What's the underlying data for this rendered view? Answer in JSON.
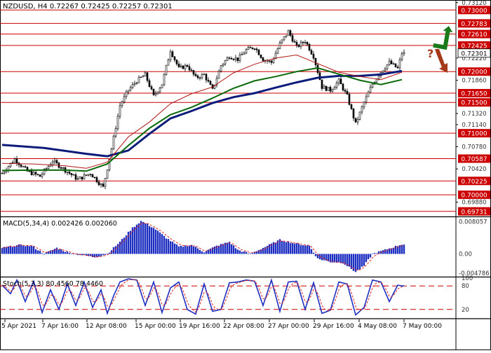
{
  "colors": {
    "background": "#ffffff",
    "level_line": "#cc0000",
    "level_label_bg": "#cc0000",
    "price_label_bg": "#ffffff",
    "candle": "#000000",
    "ma_blue": "#0c1c7a",
    "ma_green": "#0a6a0a",
    "ma_red": "#b01515",
    "macd_bar": "#1d2fc0",
    "signal_line": "#dd2222",
    "stoch_main": "#1d2fc0",
    "stoch_signal": "#dd2222",
    "up_arrow": "#1a7a1a",
    "down_arrow": "#a53a1a",
    "text": "#000000"
  },
  "chart_data": [
    {
      "type": "candlestick",
      "title": "NZDUSD, H4  0.72267  0.72425  0.72257  0.72301",
      "ylim": [
        0.6966,
        0.7314
      ],
      "price_ticks": [
        "0.73120",
        "0.72940",
        "0.72760",
        "0.72580",
        "0.72400",
        "0.72220",
        "0.72040",
        "0.71860",
        "0.71680",
        "0.71500",
        "0.71320",
        "0.71140",
        "0.70960",
        "0.70780",
        "0.70600",
        "0.70420",
        "0.70240",
        "0.70060",
        "0.69880"
      ],
      "current_price": "0.72301",
      "levels": [
        "0.73000",
        "0.72783",
        "0.72610",
        "0.72425",
        "0.72000",
        "0.71650",
        "0.71500",
        "0.71000",
        "0.70587",
        "0.70225",
        "0.70000",
        "0.69731"
      ],
      "time_labels": [
        "5 Apr 2021",
        "7 Apr 16:00",
        "12 Apr 08:00",
        "15 Apr 00:00",
        "19 Apr 16:00",
        "22 Apr 08:00",
        "27 Apr 00:00",
        "29 Apr 16:00",
        "4 May 08:00",
        "7 May 00:00"
      ],
      "close_anchors": [
        [
          0,
          0.7035
        ],
        [
          6,
          0.7058
        ],
        [
          12,
          0.7038
        ],
        [
          18,
          0.703
        ],
        [
          24,
          0.7055
        ],
        [
          30,
          0.704
        ],
        [
          36,
          0.7025
        ],
        [
          42,
          0.7035
        ],
        [
          48,
          0.7012
        ],
        [
          52,
          0.7075
        ],
        [
          56,
          0.7145
        ],
        [
          60,
          0.717
        ],
        [
          64,
          0.7185
        ],
        [
          68,
          0.7195
        ],
        [
          72,
          0.716
        ],
        [
          76,
          0.718
        ],
        [
          80,
          0.7235
        ],
        [
          84,
          0.7205
        ],
        [
          88,
          0.721
        ],
        [
          92,
          0.719
        ],
        [
          96,
          0.7195
        ],
        [
          100,
          0.717
        ],
        [
          104,
          0.721
        ],
        [
          108,
          0.7225
        ],
        [
          112,
          0.722
        ],
        [
          116,
          0.7235
        ],
        [
          120,
          0.724
        ],
        [
          124,
          0.722
        ],
        [
          128,
          0.7215
        ],
        [
          132,
          0.7245
        ],
        [
          136,
          0.7265
        ],
        [
          140,
          0.724
        ],
        [
          144,
          0.725
        ],
        [
          148,
          0.7225
        ],
        [
          152,
          0.7175
        ],
        [
          156,
          0.717
        ],
        [
          160,
          0.7185
        ],
        [
          164,
          0.716
        ],
        [
          168,
          0.7115
        ],
        [
          172,
          0.715
        ],
        [
          176,
          0.718
        ],
        [
          180,
          0.72
        ],
        [
          184,
          0.7215
        ],
        [
          188,
          0.7205
        ],
        [
          190,
          0.723
        ]
      ],
      "moving_averages": [
        {
          "color": "ma_blue",
          "points": [
            [
              0,
              0.7081
            ],
            [
              20,
              0.7076
            ],
            [
              40,
              0.70665
            ],
            [
              50,
              0.70625
            ],
            [
              60,
              0.7072
            ],
            [
              70,
              0.7099
            ],
            [
              80,
              0.7124
            ],
            [
              90,
              0.7136
            ],
            [
              100,
              0.7149
            ],
            [
              110,
              0.71585
            ],
            [
              120,
              0.7165
            ],
            [
              130,
              0.7174
            ],
            [
              140,
              0.71825
            ],
            [
              150,
              0.719
            ],
            [
              160,
              0.7193
            ],
            [
              170,
              0.7193
            ],
            [
              180,
              0.71955
            ],
            [
              190,
              0.7201
            ]
          ]
        },
        {
          "color": "ma_green",
          "points": [
            [
              0,
              0.70395
            ],
            [
              15,
              0.704
            ],
            [
              30,
              0.704
            ],
            [
              40,
              0.70385
            ],
            [
              50,
              0.705
            ],
            [
              60,
              0.708
            ],
            [
              70,
              0.7108
            ],
            [
              80,
              0.713
            ],
            [
              90,
              0.7142
            ],
            [
              100,
              0.7157
            ],
            [
              110,
              0.7173
            ],
            [
              120,
              0.7185
            ],
            [
              130,
              0.7192
            ],
            [
              140,
              0.72
            ],
            [
              150,
              0.7206
            ],
            [
              160,
              0.7196
            ],
            [
              170,
              0.7186
            ],
            [
              180,
              0.7179
            ],
            [
              190,
              0.7187
            ]
          ]
        },
        {
          "color": "ma_red",
          "points": [
            [
              0,
              0.7051
            ],
            [
              15,
              0.705
            ],
            [
              30,
              0.7047
            ],
            [
              40,
              0.7043
            ],
            [
              50,
              0.7053
            ],
            [
              60,
              0.7094
            ],
            [
              70,
              0.7118
            ],
            [
              80,
              0.7148
            ],
            [
              90,
              0.7164
            ],
            [
              100,
              0.7175
            ],
            [
              110,
              0.7198
            ],
            [
              120,
              0.7212
            ],
            [
              130,
              0.7222
            ],
            [
              140,
              0.7227
            ],
            [
              150,
              0.7213
            ],
            [
              160,
              0.7199
            ],
            [
              170,
              0.7192
            ],
            [
              180,
              0.7187
            ],
            [
              190,
              0.7199
            ]
          ]
        }
      ]
    },
    {
      "type": "bar",
      "title": "MACD(5,34,4) 0.002426 0.002060",
      "ylim": [
        -0.0055,
        0.009
      ],
      "ticks": [
        "0.008057",
        "0.00",
        "-0.004786"
      ],
      "anchors": [
        [
          0,
          0.0015
        ],
        [
          8,
          0.0022
        ],
        [
          14,
          0.002
        ],
        [
          20,
          0.0
        ],
        [
          26,
          0.0015
        ],
        [
          32,
          0.0002
        ],
        [
          38,
          -0.0003
        ],
        [
          44,
          -0.0008
        ],
        [
          50,
          0.0
        ],
        [
          56,
          0.003
        ],
        [
          62,
          0.0065
        ],
        [
          66,
          0.0082
        ],
        [
          72,
          0.0065
        ],
        [
          78,
          0.004
        ],
        [
          84,
          0.0018
        ],
        [
          90,
          0.0022
        ],
        [
          96,
          0.0005
        ],
        [
          102,
          0.002
        ],
        [
          108,
          0.003
        ],
        [
          112,
          0.001
        ],
        [
          118,
          0.0
        ],
        [
          126,
          0.002
        ],
        [
          132,
          0.0035
        ],
        [
          136,
          0.003
        ],
        [
          140,
          0.0025
        ],
        [
          146,
          0.002
        ],
        [
          150,
          -0.0012
        ],
        [
          156,
          -0.002
        ],
        [
          162,
          -0.0022
        ],
        [
          168,
          -0.0045
        ],
        [
          172,
          -0.003
        ],
        [
          176,
          0.0
        ],
        [
          182,
          0.001
        ],
        [
          190,
          0.0024
        ]
      ]
    },
    {
      "type": "line",
      "title": "Stoch(5,3,3) 80.4560 78.4460",
      "ylim": [
        0,
        100
      ],
      "ticks": [
        "100",
        "80",
        "20",
        "0"
      ],
      "levels": [
        80,
        20
      ],
      "anchors": [
        [
          0,
          82
        ],
        [
          4,
          60
        ],
        [
          7,
          95
        ],
        [
          11,
          40
        ],
        [
          15,
          92
        ],
        [
          19,
          12
        ],
        [
          23,
          70
        ],
        [
          27,
          20
        ],
        [
          31,
          85
        ],
        [
          35,
          30
        ],
        [
          39,
          90
        ],
        [
          43,
          25
        ],
        [
          47,
          70
        ],
        [
          50,
          10
        ],
        [
          53,
          55
        ],
        [
          56,
          90
        ],
        [
          60,
          98
        ],
        [
          64,
          95
        ],
        [
          68,
          30
        ],
        [
          72,
          90
        ],
        [
          76,
          12
        ],
        [
          80,
          75
        ],
        [
          84,
          90
        ],
        [
          88,
          20
        ],
        [
          92,
          8
        ],
        [
          96,
          85
        ],
        [
          100,
          15
        ],
        [
          104,
          20
        ],
        [
          108,
          88
        ],
        [
          112,
          90
        ],
        [
          116,
          95
        ],
        [
          120,
          92
        ],
        [
          124,
          30
        ],
        [
          128,
          95
        ],
        [
          132,
          15
        ],
        [
          136,
          90
        ],
        [
          140,
          92
        ],
        [
          144,
          20
        ],
        [
          148,
          88
        ],
        [
          152,
          10
        ],
        [
          156,
          18
        ],
        [
          160,
          90
        ],
        [
          164,
          85
        ],
        [
          168,
          6
        ],
        [
          172,
          25
        ],
        [
          176,
          95
        ],
        [
          180,
          90
        ],
        [
          184,
          40
        ],
        [
          188,
          82
        ],
        [
          190,
          80
        ]
      ]
    }
  ]
}
